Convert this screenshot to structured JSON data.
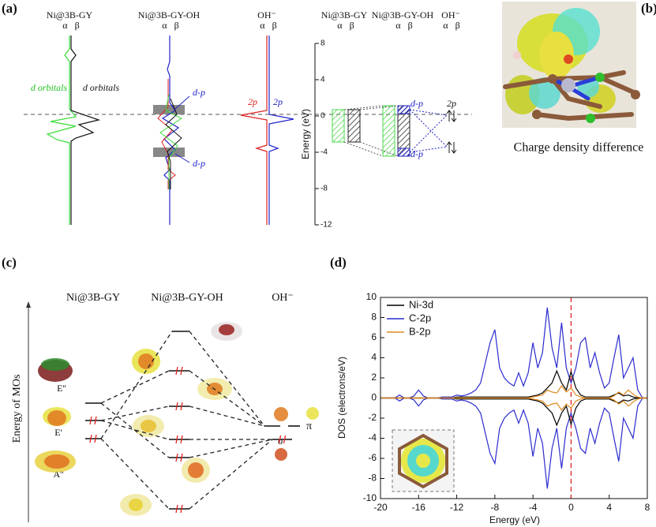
{
  "panels": {
    "a": {
      "label": "(a)",
      "columns": [
        "Ni@3B-GY",
        "Ni@3B-GY-OH",
        "OH⁻"
      ],
      "spins": "α   β",
      "orbital_label": "d orbitals",
      "dp_label": "d-p",
      "p_label": "2p",
      "axis_label": "Energy (eV)",
      "ylim": [
        -12,
        8
      ],
      "yticks": [
        8,
        4,
        0,
        -4,
        -8,
        -12
      ]
    },
    "b": {
      "label": "(b)",
      "caption": "Charge density difference"
    },
    "c": {
      "label": "(c)",
      "columns": [
        "Ni@3B-GY",
        "Ni@3B-GY-OH",
        "OH⁻"
      ],
      "axis_label": "Energy of MOs",
      "state_labels": [
        "E''",
        "E'",
        "A''"
      ],
      "orbital_labels": [
        "π",
        "σ"
      ]
    }
  },
  "chart_data": {
    "type": "line",
    "panel_label": "(d)",
    "x_label": "Energy (eV)",
    "y_label": "DOS (electrons/eV)",
    "xlim": [
      -20,
      8
    ],
    "ylim": [
      -10,
      10
    ],
    "xticks": [
      -20,
      -16,
      -12,
      -8,
      -4,
      0,
      4,
      8
    ],
    "yticks": [
      -10,
      -8,
      -6,
      -4,
      -2,
      0,
      2,
      4,
      6,
      8,
      10
    ],
    "reference_line": {
      "x": 0,
      "color": "#e02020"
    },
    "legend": "upper left",
    "x": [
      -20,
      -19.5,
      -19,
      -18.5,
      -18,
      -17.5,
      -17,
      -16.5,
      -16,
      -15.5,
      -15,
      -14.5,
      -14,
      -13.5,
      -13,
      -12.5,
      -12,
      -11.5,
      -11,
      -10.5,
      -10,
      -9.5,
      -9,
      -8.5,
      -8,
      -7.5,
      -7,
      -6.5,
      -6,
      -5.5,
      -5,
      -4.5,
      -4,
      -3.5,
      -3,
      -2.5,
      -2,
      -1.5,
      -1,
      -0.5,
      0,
      0.5,
      1,
      1.5,
      2,
      2.5,
      3,
      3.5,
      4,
      4.5,
      5,
      5.5,
      6,
      6.5,
      7,
      7.5,
      8
    ],
    "series": [
      {
        "name": "Ni-3d",
        "color": "#000000",
        "values": [
          0,
          0,
          0,
          0,
          0,
          0,
          0,
          0,
          0,
          0,
          0,
          0,
          0,
          0,
          0,
          0,
          0.1,
          0.1,
          0.1,
          0.1,
          0.1,
          0.1,
          0.1,
          0.1,
          0.1,
          0.1,
          0.1,
          0.1,
          0.1,
          0.1,
          0.1,
          0.1,
          0.2,
          0.3,
          0.5,
          1,
          1.5,
          2.7,
          1.5,
          0.8,
          2.6,
          1,
          0.3,
          0.1,
          0.1,
          0.1,
          0.1,
          0.1,
          0.1,
          0.3,
          0.5,
          0.2,
          0.3,
          0.1,
          0,
          0,
          0
        ],
        "values_down": [
          0,
          0,
          0,
          0,
          0,
          0,
          0,
          0,
          0,
          0,
          0,
          0,
          0,
          0,
          0,
          0,
          -0.1,
          -0.1,
          -0.1,
          -0.1,
          -0.1,
          -0.1,
          -0.1,
          -0.1,
          -0.1,
          -0.1,
          -0.1,
          -0.1,
          -0.1,
          -0.1,
          -0.1,
          -0.1,
          -0.2,
          -0.3,
          -0.5,
          -1,
          -1.5,
          -2.7,
          -1.5,
          -0.8,
          -2.6,
          -1,
          -0.3,
          -0.1,
          -0.1,
          -0.1,
          -0.1,
          -0.1,
          -0.1,
          -0.3,
          -0.5,
          -0.2,
          -0.3,
          -0.1,
          0,
          0,
          0
        ]
      },
      {
        "name": "C-2p",
        "color": "#2b2bd0",
        "values": [
          0,
          0,
          0,
          0,
          0.3,
          0,
          0,
          0.2,
          0.8,
          0.2,
          0,
          0,
          0,
          0.1,
          0.1,
          0.1,
          0.3,
          0.2,
          0.3,
          0.5,
          0.8,
          1.5,
          3.5,
          5.5,
          6.8,
          3,
          2,
          1.5,
          1.2,
          2.5,
          1.2,
          2.5,
          5.5,
          3,
          4.5,
          9,
          5,
          3,
          7.5,
          3,
          1.5,
          3,
          5.5,
          6,
          3,
          4.5,
          2.5,
          1,
          1.5,
          4,
          6.3,
          2,
          3,
          4,
          0.8,
          0,
          0
        ],
        "values_down": [
          0,
          0,
          0,
          0,
          -0.3,
          0,
          0,
          -0.2,
          -0.8,
          -0.2,
          0,
          0,
          0,
          -0.1,
          -0.1,
          -0.1,
          -0.3,
          -0.2,
          -0.3,
          -0.5,
          -0.8,
          -1.5,
          -3.5,
          -5.5,
          -6.5,
          -3,
          -2,
          -1.5,
          -1.2,
          -2.5,
          -1.2,
          -2.5,
          -5.8,
          -3,
          -4.5,
          -9,
          -5,
          -3,
          -7,
          -3,
          -1.5,
          -3,
          -5,
          -5.5,
          -3,
          -4.5,
          -2.5,
          -1,
          -1.5,
          -4,
          -6.3,
          -2,
          -3,
          -4,
          -0.8,
          0,
          0
        ]
      },
      {
        "name": "B-2p",
        "color": "#e08a1e",
        "values": [
          0,
          0,
          0,
          0,
          0,
          0,
          0,
          0,
          0,
          0,
          0,
          0,
          0,
          0,
          0,
          0,
          0,
          0,
          0,
          0,
          0,
          0,
          0,
          0,
          0,
          0,
          0,
          0,
          0,
          0,
          0,
          0,
          0.1,
          0.2,
          0.3,
          0.8,
          0.6,
          0.5,
          1.2,
          0.6,
          1,
          0.3,
          0.1,
          0,
          0,
          0,
          0,
          0,
          0,
          0.2,
          0.6,
          0.3,
          0.8,
          0.4,
          0.1,
          0,
          0
        ],
        "values_down": [
          0,
          0,
          0,
          0,
          0,
          0,
          0,
          0,
          0,
          0,
          0,
          0,
          0,
          0,
          0,
          0,
          0,
          0,
          0,
          0,
          0,
          0,
          0,
          0,
          0,
          0,
          0,
          0,
          0,
          0,
          0,
          0,
          -0.1,
          -0.2,
          -0.3,
          -0.8,
          -0.6,
          -0.5,
          -1.2,
          -0.6,
          -1,
          -0.3,
          -0.1,
          0,
          0,
          0,
          0,
          0,
          0,
          -0.2,
          -0.6,
          -0.3,
          -0.8,
          -0.4,
          -0.1,
          0,
          0
        ]
      }
    ]
  }
}
